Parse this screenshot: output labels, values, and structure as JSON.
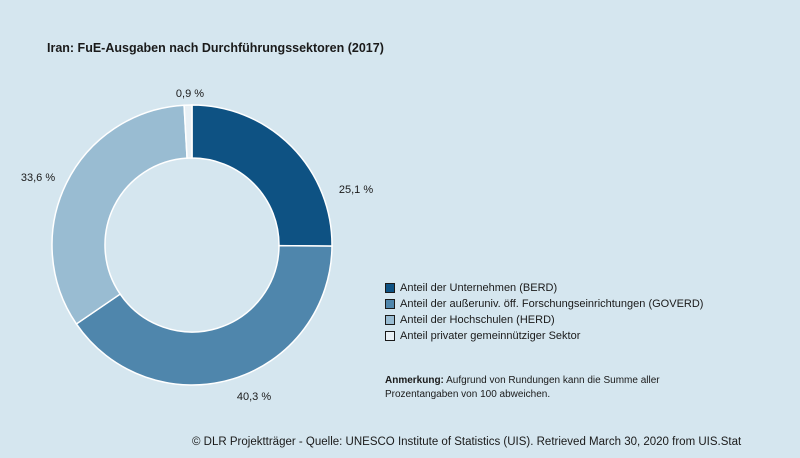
{
  "title": "Iran: FuE-Ausgaben nach Durchführungssektoren (2017)",
  "chart_data": {
    "type": "pie",
    "donut": true,
    "categories": [
      "Anteil der Unternehmen (BERD)",
      "Anteil der außeruniv. öff. Forschungseinrichtungen (GOVERD)",
      "Anteil der Hochschulen (HERD)",
      "Anteil privater gemeinnütziger Sektor"
    ],
    "values": [
      25.1,
      40.3,
      33.6,
      0.9
    ],
    "labels": [
      "25,1 %",
      "40,3 %",
      "33,6 %",
      "0,9 %"
    ],
    "colors": [
      "#0e5283",
      "#4f86ac",
      "#99bcd2",
      "#e8f0f5"
    ],
    "legend_position": "right"
  },
  "note": {
    "label": "Anmerkung:",
    "text": "Aufgrund von Rundungen kann die Summe aller Prozentangaben von 100 abweichen."
  },
  "footer": "© DLR Projektträger - Quelle: UNESCO Institute of Statistics (UIS). Retrieved March 30, 2020 from UIS.Stat"
}
